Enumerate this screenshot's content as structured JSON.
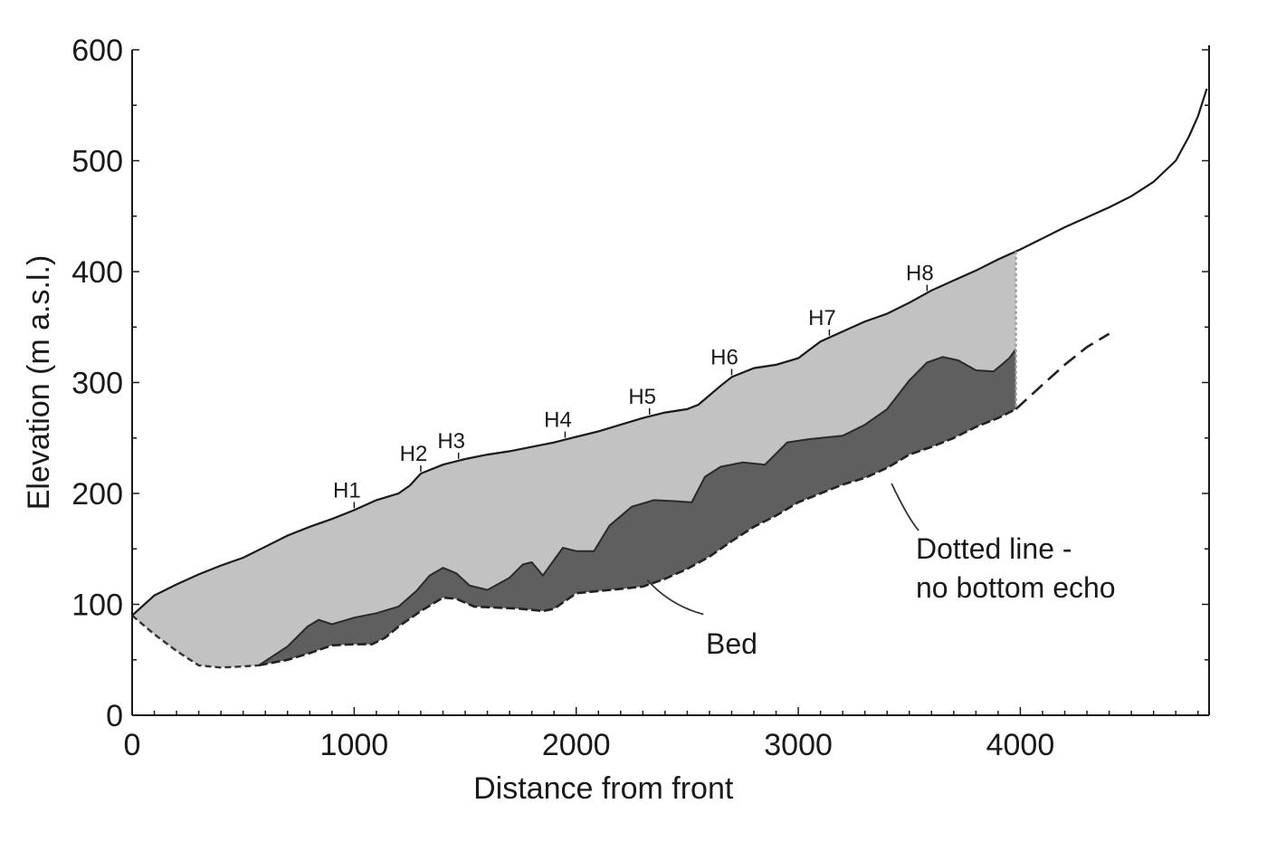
{
  "chart_data": {
    "type": "area",
    "xlabel": "Distance from front",
    "ylabel": "Elevation (m a.s.l.)",
    "xlim": [
      0,
      4850
    ],
    "ylim": [
      0,
      600
    ],
    "x_ticks": [
      0,
      1000,
      2000,
      3000,
      4000
    ],
    "y_ticks": [
      0,
      100,
      200,
      300,
      400,
      500,
      600
    ],
    "grid": false,
    "surface": [
      [
        0,
        90
      ],
      [
        100,
        108
      ],
      [
        200,
        118
      ],
      [
        300,
        127
      ],
      [
        400,
        135
      ],
      [
        500,
        142
      ],
      [
        600,
        152
      ],
      [
        700,
        162
      ],
      [
        800,
        170
      ],
      [
        900,
        177
      ],
      [
        1000,
        185
      ],
      [
        1100,
        194
      ],
      [
        1200,
        200
      ],
      [
        1250,
        207
      ],
      [
        1300,
        218
      ],
      [
        1400,
        226
      ],
      [
        1500,
        231
      ],
      [
        1600,
        235
      ],
      [
        1700,
        238
      ],
      [
        1800,
        242
      ],
      [
        1900,
        246
      ],
      [
        2000,
        251
      ],
      [
        2100,
        256
      ],
      [
        2200,
        262
      ],
      [
        2300,
        268
      ],
      [
        2400,
        273
      ],
      [
        2500,
        276
      ],
      [
        2550,
        280
      ],
      [
        2650,
        297
      ],
      [
        2700,
        305
      ],
      [
        2800,
        313
      ],
      [
        2900,
        316
      ],
      [
        3000,
        322
      ],
      [
        3100,
        337
      ],
      [
        3200,
        346
      ],
      [
        3300,
        355
      ],
      [
        3400,
        362
      ],
      [
        3500,
        372
      ],
      [
        3600,
        383
      ],
      [
        3700,
        392
      ],
      [
        3800,
        401
      ],
      [
        3900,
        411
      ],
      [
        4000,
        420
      ],
      [
        4100,
        430
      ],
      [
        4200,
        440
      ],
      [
        4300,
        449
      ],
      [
        4400,
        458
      ],
      [
        4500,
        468
      ],
      [
        4600,
        481
      ],
      [
        4700,
        500
      ],
      [
        4760,
        522
      ],
      [
        4800,
        540
      ],
      [
        4840,
        565
      ]
    ],
    "ice_bottom": [
      [
        570,
        45
      ],
      [
        700,
        62
      ],
      [
        790,
        80
      ],
      [
        840,
        86
      ],
      [
        900,
        82
      ],
      [
        1000,
        88
      ],
      [
        1100,
        92
      ],
      [
        1200,
        98
      ],
      [
        1280,
        112
      ],
      [
        1340,
        126
      ],
      [
        1400,
        133
      ],
      [
        1460,
        128
      ],
      [
        1520,
        117
      ],
      [
        1600,
        113
      ],
      [
        1700,
        124
      ],
      [
        1760,
        136
      ],
      [
        1800,
        138
      ],
      [
        1850,
        126
      ],
      [
        1900,
        140
      ],
      [
        1940,
        151
      ],
      [
        2000,
        148
      ],
      [
        2080,
        148
      ],
      [
        2150,
        171
      ],
      [
        2250,
        188
      ],
      [
        2350,
        194
      ],
      [
        2450,
        193
      ],
      [
        2520,
        192
      ],
      [
        2580,
        215
      ],
      [
        2650,
        224
      ],
      [
        2750,
        228
      ],
      [
        2850,
        226
      ],
      [
        2950,
        246
      ],
      [
        3050,
        249
      ],
      [
        3150,
        251
      ],
      [
        3200,
        252
      ],
      [
        3300,
        262
      ],
      [
        3400,
        276
      ],
      [
        3500,
        302
      ],
      [
        3580,
        318
      ],
      [
        3650,
        323
      ],
      [
        3720,
        320
      ],
      [
        3800,
        311
      ],
      [
        3880,
        310
      ],
      [
        3950,
        322
      ],
      [
        3980,
        330
      ]
    ],
    "bed": [
      [
        0,
        90
      ],
      [
        100,
        73
      ],
      [
        200,
        58
      ],
      [
        300,
        45
      ],
      [
        400,
        43
      ],
      [
        500,
        44
      ],
      [
        570,
        45
      ],
      [
        700,
        50
      ],
      [
        800,
        56
      ],
      [
        900,
        63
      ],
      [
        1000,
        64
      ],
      [
        1080,
        64
      ],
      [
        1140,
        70
      ],
      [
        1200,
        80
      ],
      [
        1300,
        94
      ],
      [
        1400,
        106
      ],
      [
        1460,
        105
      ],
      [
        1540,
        98
      ],
      [
        1650,
        97
      ],
      [
        1750,
        96
      ],
      [
        1850,
        94
      ],
      [
        1900,
        96
      ],
      [
        2000,
        110
      ],
      [
        2100,
        112
      ],
      [
        2200,
        114
      ],
      [
        2300,
        116
      ],
      [
        2400,
        123
      ],
      [
        2500,
        132
      ],
      [
        2600,
        143
      ],
      [
        2700,
        157
      ],
      [
        2800,
        170
      ],
      [
        2900,
        180
      ],
      [
        3000,
        192
      ],
      [
        3100,
        200
      ],
      [
        3200,
        208
      ],
      [
        3300,
        214
      ],
      [
        3400,
        223
      ],
      [
        3500,
        235
      ],
      [
        3600,
        242
      ],
      [
        3700,
        250
      ],
      [
        3800,
        260
      ],
      [
        3900,
        268
      ],
      [
        3980,
        276
      ]
    ],
    "bed_extension": [
      [
        3980,
        276
      ],
      [
        4100,
        298
      ],
      [
        4200,
        316
      ],
      [
        4300,
        332
      ],
      [
        4400,
        344
      ]
    ],
    "markers": [
      {
        "label": "H1",
        "x": 1000
      },
      {
        "label": "H2",
        "x": 1300
      },
      {
        "label": "H3",
        "x": 1470
      },
      {
        "label": "H4",
        "x": 1950
      },
      {
        "label": "H5",
        "x": 2330
      },
      {
        "label": "H6",
        "x": 2700
      },
      {
        "label": "H7",
        "x": 3140
      },
      {
        "label": "H8",
        "x": 3580
      }
    ],
    "annotations": [
      {
        "text": "Bed",
        "target": [
          2320,
          122
        ]
      },
      {
        "text": "Dotted line -",
        "line2": "no bottom echo",
        "target": [
          3420,
          209
        ]
      }
    ],
    "colors": {
      "ice": "#c2c2c2",
      "sediment": "#5f5f5f",
      "line": "#1a1a1a"
    }
  }
}
